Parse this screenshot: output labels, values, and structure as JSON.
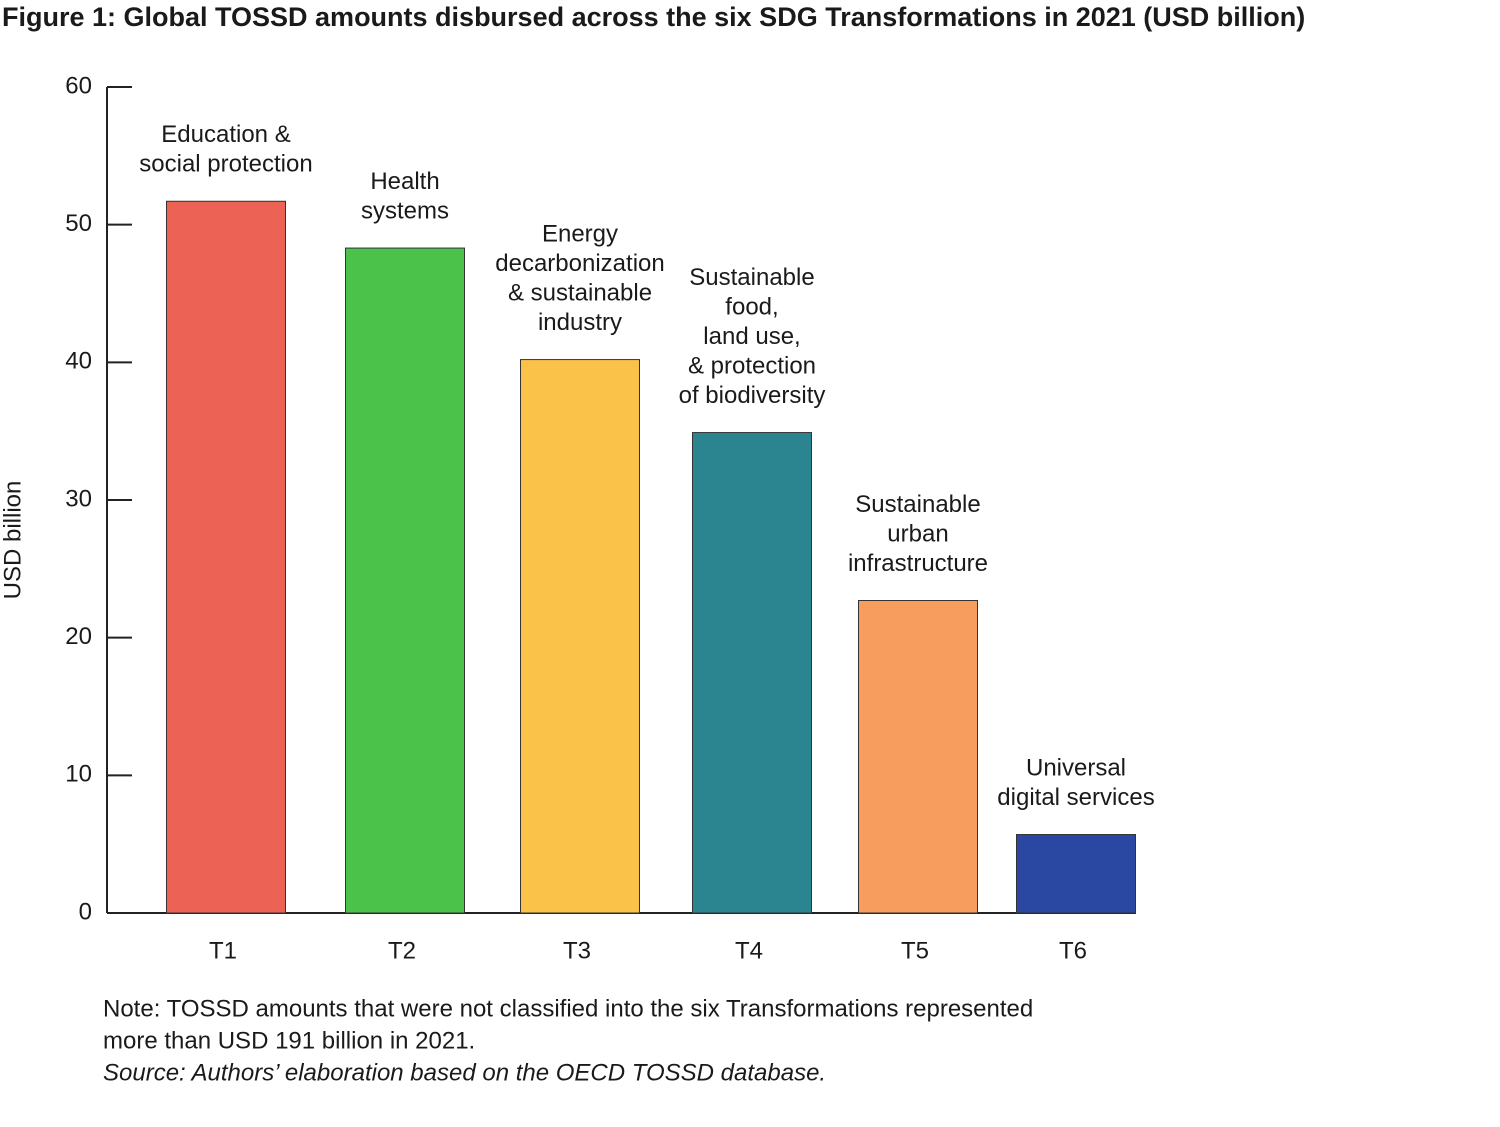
{
  "chart_data": {
    "type": "bar",
    "title": "Figure 1: Global TOSSD amounts disbursed across the six SDG Transformations in 2021 (USD billion)",
    "y_label": "USD billion",
    "categories": [
      "T1",
      "T2",
      "T3",
      "T4",
      "T5",
      "T6"
    ],
    "values": [
      51.7,
      48.3,
      40.2,
      34.9,
      22.7,
      5.7
    ],
    "colors": [
      "#ec6355",
      "#4bc24a",
      "#fbc24a",
      "#2b8590",
      "#f79e5f",
      "#2a47a1"
    ],
    "bar_labels": [
      [
        "Education &",
        "social protection"
      ],
      [
        "Health",
        "systems"
      ],
      [
        "Energy",
        "decarbonization",
        "& sustainable",
        "industry"
      ],
      [
        "Sustainable",
        "food,",
        "land use,",
        "& protection",
        "of biodiversity"
      ],
      [
        "Sustainable",
        "urban",
        "infrastructure"
      ],
      [
        "Universal",
        "digital services"
      ]
    ],
    "ylim": [
      0,
      60
    ],
    "yticks": [
      0,
      10,
      20,
      30,
      40,
      50,
      60
    ],
    "grid": false,
    "note": [
      "Note: TOSSD amounts that were not classified into the six Transformations represented",
      "more than USD 191 billion in 2021."
    ],
    "source": "Source: Authors’ elaboration based on the OECD TOSSD database."
  }
}
